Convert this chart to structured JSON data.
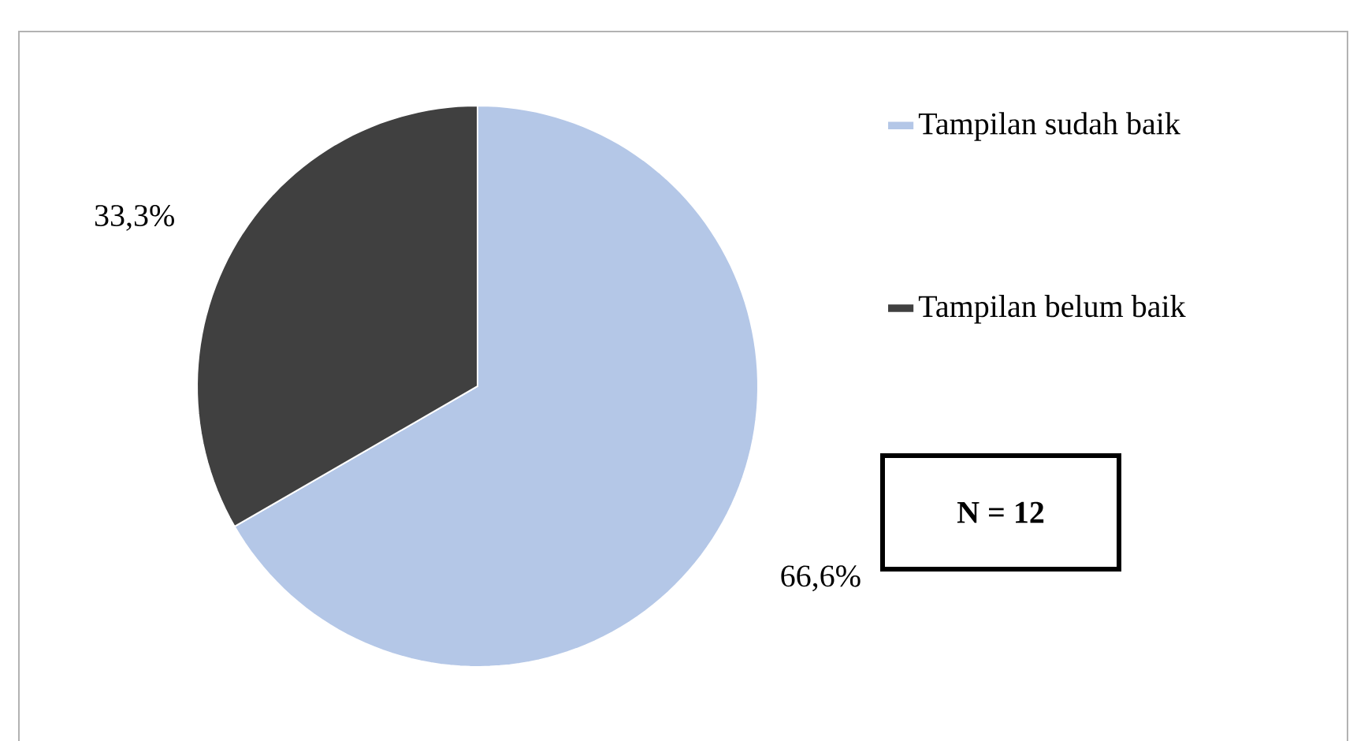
{
  "chart_data": {
    "type": "pie",
    "categories": [
      "Tampilan sudah baik",
      "Tampilan belum baik"
    ],
    "values": [
      66.6,
      33.3
    ],
    "colors": [
      "#b4c7e7",
      "#404040"
    ],
    "value_labels": [
      "66,6%",
      "33,3%"
    ],
    "legend": "right",
    "annotations": [
      "N = 12"
    ]
  }
}
